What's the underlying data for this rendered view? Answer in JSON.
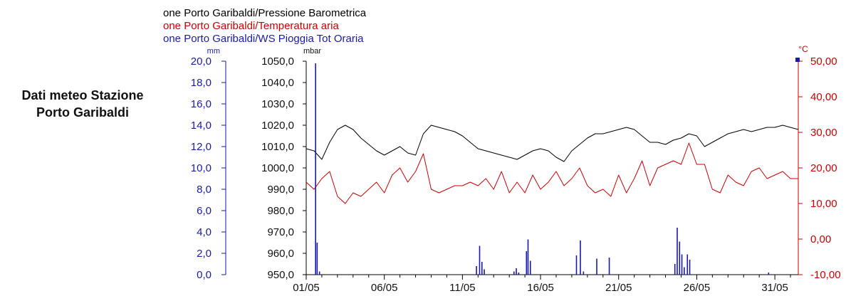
{
  "side_title": {
    "line1": "Dati meteo Stazione",
    "line2": "Porto Garibaldi"
  },
  "colors": {
    "pressure": "#000000",
    "temperature": "#cc0000",
    "rain": "#1a1aa8",
    "background": "#ffffff"
  },
  "chart_data": {
    "type": "line",
    "legend": {
      "placement": "top-left",
      "entries": [
        {
          "text": "one Porto Garibaldi/Pressione Barometrica",
          "color": "#000000"
        },
        {
          "text": "one Porto Garibaldi/Temperatura aria",
          "color": "#cc0000"
        },
        {
          "text": "one Porto Garibaldi/WS Pioggia Tot Oraria",
          "color": "#1a1aa8"
        }
      ]
    },
    "x": {
      "range": [
        0,
        31.5
      ],
      "ticks": [
        {
          "day": 0,
          "label": "01/05"
        },
        {
          "day": 5,
          "label": "06/05"
        },
        {
          "day": 10,
          "label": "11/05"
        },
        {
          "day": 15,
          "label": "16/05"
        },
        {
          "day": 20,
          "label": "21/05"
        },
        {
          "day": 25,
          "label": "26/05"
        },
        {
          "day": 30,
          "label": "31/05"
        }
      ]
    },
    "axes": {
      "rain": {
        "unit": "mm",
        "range": [
          0,
          20
        ],
        "ticks": [
          "0,0",
          "2,0",
          "4,0",
          "6,0",
          "8,0",
          "10,0",
          "12,0",
          "14,0",
          "16,0",
          "18,0",
          "20,0"
        ]
      },
      "pressure": {
        "unit": "mbar",
        "range": [
          950,
          1050
        ],
        "ticks": [
          "950,0",
          "960,0",
          "970,0",
          "980,0",
          "990,0",
          "1000,0",
          "1010,0",
          "1020,0",
          "1030,0",
          "1040,0",
          "1050,0"
        ]
      },
      "temperature": {
        "unit": "°C",
        "range": [
          -10,
          50
        ],
        "ticks": [
          "-10,00",
          "0,00",
          "10,00",
          "20,00",
          "30,00",
          "40,00",
          "50,00"
        ]
      }
    },
    "series": [
      {
        "key": "pressure",
        "axis": "pressure",
        "kind": "line",
        "x": [
          0,
          0.5,
          1,
          1.5,
          2,
          2.5,
          3,
          3.5,
          4,
          4.5,
          5,
          5.5,
          6,
          6.5,
          7,
          7.5,
          8,
          8.5,
          9,
          9.5,
          10,
          10.5,
          11,
          11.5,
          12,
          12.5,
          13,
          13.5,
          14,
          14.5,
          15,
          15.5,
          16,
          16.5,
          17,
          17.5,
          18,
          18.5,
          19,
          19.5,
          20,
          20.5,
          21,
          21.5,
          22,
          22.5,
          23,
          23.5,
          24,
          24.5,
          25,
          25.5,
          26,
          26.5,
          27,
          27.5,
          28,
          28.5,
          29,
          29.5,
          30,
          30.5,
          31,
          31.5
        ],
        "values": [
          1009,
          1008,
          1004,
          1012,
          1018,
          1020,
          1018,
          1014,
          1011,
          1008,
          1006,
          1008,
          1010,
          1007,
          1006,
          1016,
          1020,
          1019,
          1018,
          1017,
          1015,
          1012,
          1009,
          1008,
          1007,
          1006,
          1005,
          1004,
          1006,
          1008,
          1009,
          1008,
          1005,
          1003,
          1008,
          1011,
          1014,
          1016,
          1016,
          1017,
          1018,
          1019,
          1018,
          1015,
          1012,
          1012,
          1011,
          1013,
          1014,
          1016,
          1015,
          1010,
          1012,
          1014,
          1016,
          1017,
          1018,
          1017,
          1018,
          1019,
          1019,
          1020,
          1019,
          1018
        ]
      },
      {
        "key": "temperature",
        "axis": "temperature",
        "kind": "line",
        "x": [
          0,
          0.5,
          1,
          1.5,
          2,
          2.5,
          3,
          3.5,
          4,
          4.5,
          5,
          5.5,
          6,
          6.5,
          7,
          7.5,
          8,
          8.5,
          9,
          9.5,
          10,
          10.5,
          11,
          11.5,
          12,
          12.5,
          13,
          13.5,
          14,
          14.5,
          15,
          15.5,
          16,
          16.5,
          17,
          17.5,
          18,
          18.5,
          19,
          19.5,
          20,
          20.5,
          21,
          21.5,
          22,
          22.5,
          23,
          23.5,
          24,
          24.5,
          25,
          25.5,
          26,
          26.5,
          27,
          27.5,
          28,
          28.5,
          29,
          29.5,
          30,
          30.5,
          31,
          31.5
        ],
        "values": [
          16,
          14,
          17,
          19,
          12,
          10,
          13,
          12,
          14,
          16,
          13,
          18,
          20,
          16,
          19,
          24,
          14,
          13,
          14,
          15,
          15,
          16,
          15,
          17,
          14,
          19,
          13,
          16,
          13,
          18,
          14,
          16,
          19,
          15,
          17,
          20,
          15,
          13,
          14,
          12,
          18,
          13,
          17,
          22,
          15,
          20,
          21,
          22,
          21,
          27,
          21,
          21,
          14,
          13,
          18,
          16,
          15,
          19,
          20,
          17,
          18,
          19,
          17,
          17
        ]
      },
      {
        "key": "rain",
        "axis": "rain",
        "kind": "bar",
        "x": [
          0.6,
          0.7,
          0.85,
          10.9,
          11.1,
          11.25,
          11.4,
          13.3,
          13.45,
          13.6,
          14.1,
          14.2,
          14.35,
          17.3,
          17.55,
          17.75,
          18.6,
          19.4,
          23.6,
          23.75,
          23.9,
          24.05,
          24.2,
          24.4,
          24.55,
          29.6
        ],
        "values": [
          19.8,
          3.0,
          0.3,
          0.8,
          2.7,
          1.2,
          0.5,
          0.3,
          0.6,
          0.2,
          2.2,
          3.3,
          1.3,
          1.8,
          3.2,
          0.3,
          1.5,
          1.6,
          1.0,
          4.4,
          3.1,
          1.9,
          0.7,
          1.9,
          1.4,
          0.2
        ]
      }
    ]
  }
}
